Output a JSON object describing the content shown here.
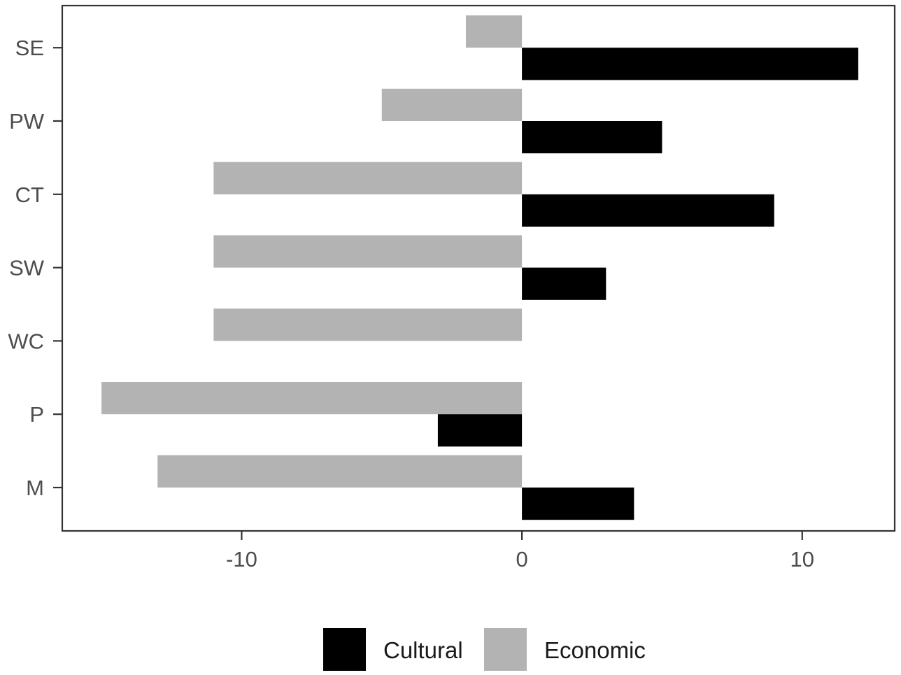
{
  "chart_data": {
    "type": "bar",
    "orientation": "horizontal",
    "title": "",
    "xlabel": "",
    "ylabel": "",
    "categories": [
      "SE",
      "PW",
      "CT",
      "SW",
      "WC",
      "P",
      "M"
    ],
    "series": [
      {
        "name": "Cultural",
        "color": "#000000",
        "values": [
          12,
          5,
          9,
          3,
          0,
          -3,
          4
        ]
      },
      {
        "name": "Economic",
        "color": "#b3b3b3",
        "values": [
          -2,
          -5,
          -11,
          -11,
          -11,
          -15,
          -13
        ]
      }
    ],
    "xlim": [
      -16.4,
      13.3
    ],
    "xticks": [
      {
        "value": -10,
        "label": "-10"
      },
      {
        "value": 0,
        "label": "0"
      },
      {
        "value": 10,
        "label": "10"
      }
    ],
    "grid": false,
    "legend": {
      "placement": "bottom",
      "items": [
        {
          "label": "Cultural",
          "color": "#000000"
        },
        {
          "label": "Economic",
          "color": "#b3b3b3"
        }
      ]
    }
  }
}
